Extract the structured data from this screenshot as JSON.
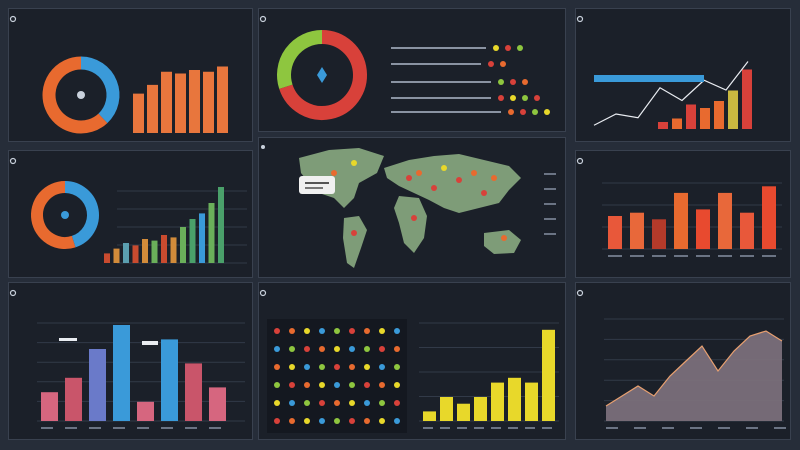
{
  "dashboard": {
    "panels": [
      {
        "id": "p1",
        "title": "",
        "icon": "gear-icon"
      },
      {
        "id": "p2",
        "title": "",
        "icon": "gear-icon"
      },
      {
        "id": "p3",
        "title": "",
        "icon": "gear-icon"
      },
      {
        "id": "p4",
        "title": "",
        "icon": "gear-icon"
      },
      {
        "id": "p5",
        "title": "",
        "icon": "pin-icon"
      },
      {
        "id": "p6",
        "title": "",
        "icon": "gear-icon"
      },
      {
        "id": "p7",
        "title": "",
        "icon": "gear-icon"
      },
      {
        "id": "p8",
        "title": "",
        "icon": "gear-icon"
      },
      {
        "id": "p9",
        "title": "",
        "icon": "gear-icon"
      }
    ],
    "colors": {
      "background": "#262d39",
      "panel": "#1b2029",
      "blue": "#3a9ad9",
      "orange": "#e86a2f",
      "red": "#d8413a",
      "green": "#8ec63f",
      "yellow": "#e8d82a",
      "pink": "#d6667f",
      "map": "#7e9c78"
    }
  },
  "chart_data": [
    {
      "type": "pie",
      "panel": "p1",
      "values": [
        38,
        62
      ],
      "colors": [
        "#3a9ad9",
        "#e86a2f"
      ],
      "companion": {
        "type": "bar",
        "values": [
          45,
          55,
          70,
          68,
          72,
          70,
          76
        ],
        "colors": [
          "#e8763d",
          "#e8763d",
          "#e8763d",
          "#e8763d",
          "#e8763d",
          "#e8763d",
          "#e8763d"
        ]
      }
    },
    {
      "type": "pie",
      "panel": "p2",
      "values": [
        70,
        30
      ],
      "colors": [
        "#d8413a",
        "#8ec63f"
      ]
    },
    {
      "type": "line",
      "panel": "p3",
      "x": [
        1,
        2,
        3,
        4,
        5,
        6,
        7,
        8
      ],
      "values": [
        5,
        20,
        15,
        55,
        38,
        65,
        52,
        90
      ],
      "companion": {
        "type": "bar",
        "values": [
          10,
          15,
          35,
          30,
          40,
          55,
          85
        ],
        "colors": [
          "#d8413a",
          "#e86a2f",
          "#d8413a",
          "#e86a2f",
          "#e86a2f",
          "#c9b840",
          "#d8413a"
        ]
      }
    },
    {
      "type": "pie",
      "panel": "p4",
      "values": [
        45,
        55
      ],
      "colors": [
        "#3a9ad9",
        "#e86a2f"
      ],
      "companion": {
        "type": "bar",
        "values": [
          12,
          18,
          25,
          22,
          30,
          28,
          35,
          32,
          45,
          55,
          62,
          75,
          95
        ],
        "colors": [
          "#c94b2f",
          "#d28b3a",
          "#5b9fb0",
          "#c94b2f",
          "#d28b3a",
          "#6aaf5a",
          "#c94b2f",
          "#d28b3a",
          "#6aaf5a",
          "#4aa06a",
          "#3a9ad9",
          "#6aaf5a",
          "#4aa06a"
        ]
      }
    },
    {
      "type": "bar",
      "panel": "p6",
      "values": [
        50,
        55,
        45,
        85,
        60,
        85,
        55,
        95
      ],
      "colors": [
        "#e8583a",
        "#e8683a",
        "#b43a2a",
        "#e86a2f",
        "#e84a2f",
        "#e8683a",
        "#e8583a",
        "#e84a2f"
      ],
      "ylim": [
        0,
        100
      ]
    },
    {
      "type": "bar",
      "panel": "p7",
      "values": [
        30,
        45,
        75,
        100,
        20,
        85,
        60,
        35
      ],
      "colors": [
        "#d6667f",
        "#c9556a",
        "#6a7ac9",
        "#3a9ad9",
        "#d6667f",
        "#3a9ad9",
        "#c9556a",
        "#d6667f"
      ],
      "ylim": [
        0,
        100
      ]
    },
    {
      "type": "bar",
      "panel": "p8b",
      "values": [
        10,
        25,
        18,
        25,
        40,
        45,
        40,
        95
      ],
      "colors": [
        "#e8d82a",
        "#e8d82a",
        "#e8d82a",
        "#e8d82a",
        "#e8d82a",
        "#e8d82a",
        "#e8d82a",
        "#e8d82a"
      ],
      "ylim": [
        0,
        100
      ]
    },
    {
      "type": "area",
      "panel": "p9",
      "values": [
        15,
        25,
        35,
        25,
        45,
        60,
        75,
        50,
        70,
        85,
        90,
        80
      ],
      "ylim": [
        0,
        100
      ]
    }
  ]
}
